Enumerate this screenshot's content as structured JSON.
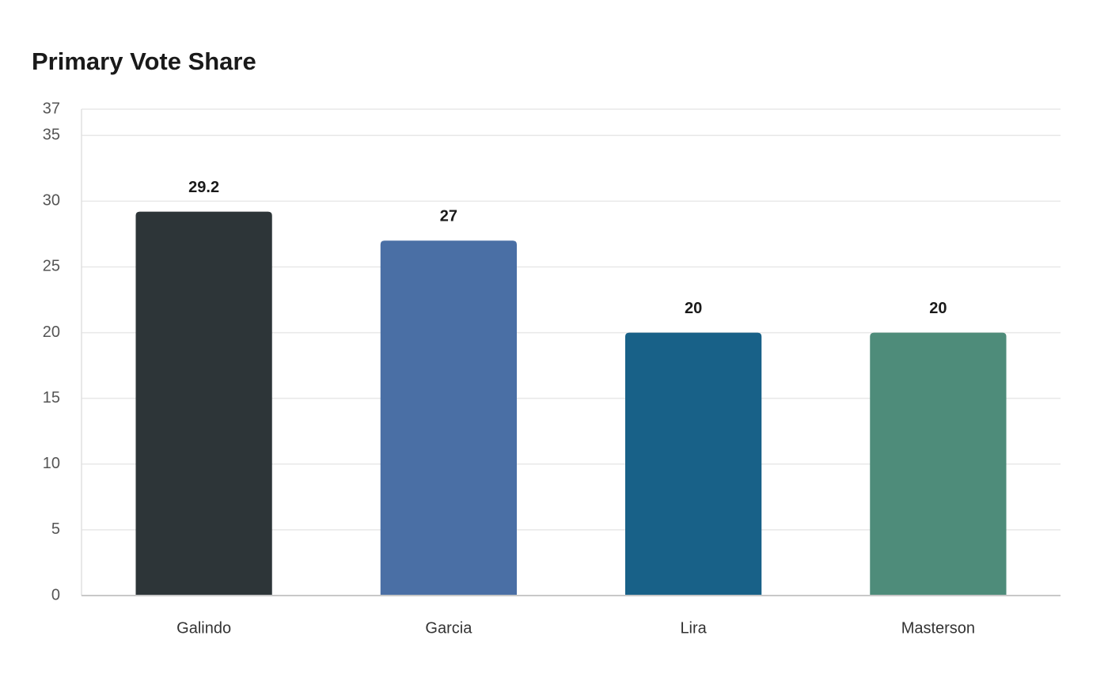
{
  "chart_data": {
    "type": "bar",
    "title": "Primary Vote Share",
    "categories": [
      "Galindo",
      "Garcia",
      "Lira",
      "Masterson"
    ],
    "values": [
      29.2,
      27,
      20,
      20
    ],
    "colors": [
      "#2d3538",
      "#4a6fa5",
      "#186188",
      "#4e8c7a"
    ],
    "ylim": [
      0,
      37
    ],
    "yticks": [
      0,
      5,
      10,
      15,
      20,
      25,
      30,
      35,
      37
    ],
    "grid": true
  }
}
